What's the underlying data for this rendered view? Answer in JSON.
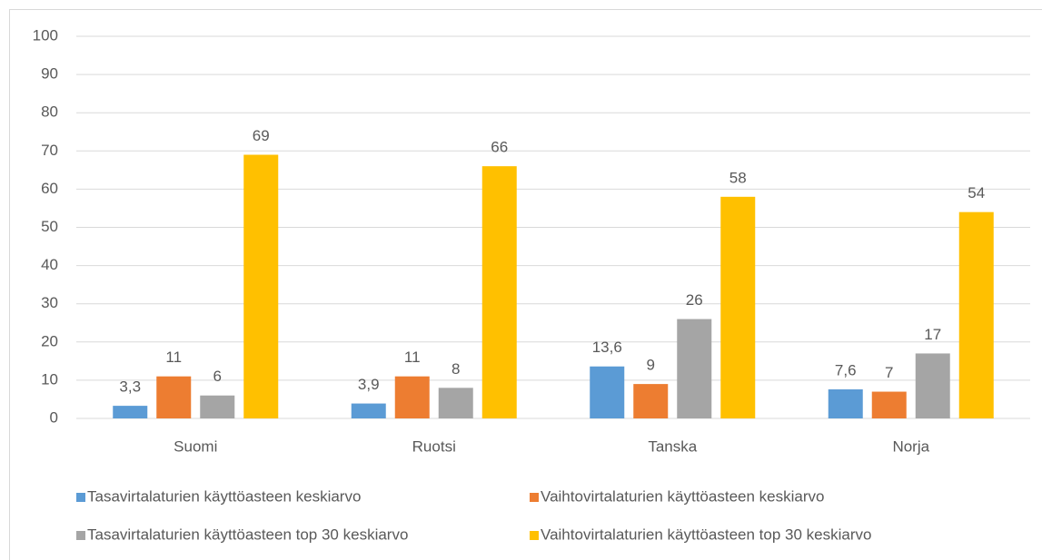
{
  "chart_data": {
    "type": "bar",
    "categories": [
      "Suomi",
      "Ruotsi",
      "Tanska",
      "Norja"
    ],
    "series": [
      {
        "name": "Tasavirtalaturien käyttöasteen keskiarvo",
        "color": "#5b9bd5",
        "values": [
          3.3,
          3.9,
          13.6,
          7.6
        ],
        "value_labels": [
          "3,3",
          "3,9",
          "13,6",
          "7,6"
        ]
      },
      {
        "name": "Vaihtovirtalaturien käyttöasteen keskiarvo",
        "color": "#ed7d31",
        "values": [
          11,
          11,
          9,
          7
        ]
      },
      {
        "name": "Tasavirtalaturien käyttöasteen top 30 keskiarvo",
        "color": "#a5a5a5",
        "values": [
          6,
          8,
          26,
          17
        ]
      },
      {
        "name": "Vaihtovirtalaturien käyttöasteen top 30 keskiarvo",
        "color": "#ffc000",
        "values": [
          69,
          66,
          58,
          54
        ]
      }
    ],
    "ylim": [
      0,
      100
    ],
    "yticks": [
      0,
      10,
      20,
      30,
      40,
      50,
      60,
      70,
      80,
      90,
      100
    ],
    "grid": true,
    "legend": "bottom"
  }
}
